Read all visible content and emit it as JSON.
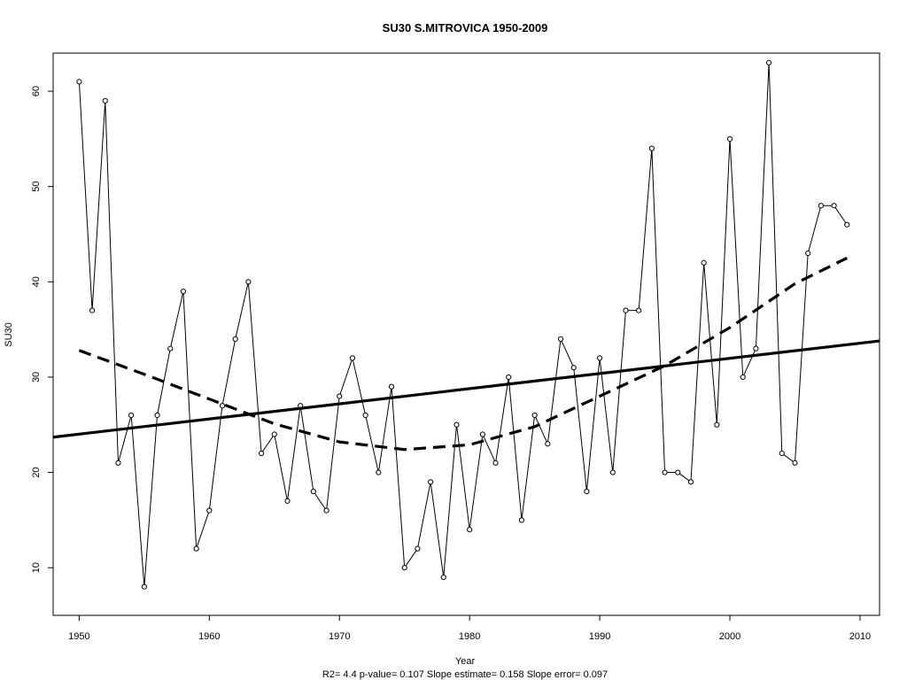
{
  "chart_data": {
    "type": "line",
    "title": "SU30   S.MITROVICA 1950-2009",
    "xlabel": "Year",
    "ylabel": "SU30",
    "stats_text": "R2= 4.4  p-value= 0.107  Slope estimate= 0.158  Slope error= 0.097",
    "xlim": [
      1948,
      2011.5
    ],
    "ylim": [
      5,
      64
    ],
    "xticks": [
      1950,
      1960,
      1970,
      1980,
      1990,
      2000,
      2010
    ],
    "yticks": [
      10,
      20,
      30,
      40,
      50,
      60
    ],
    "grid": false,
    "series": [
      {
        "style": "line-with-open-points",
        "x": [
          1950,
          1951,
          1952,
          1953,
          1954,
          1955,
          1956,
          1957,
          1958,
          1959,
          1960,
          1961,
          1962,
          1963,
          1964,
          1965,
          1966,
          1967,
          1968,
          1969,
          1970,
          1971,
          1972,
          1973,
          1974,
          1975,
          1976,
          1977,
          1978,
          1979,
          1980,
          1981,
          1982,
          1983,
          1984,
          1985,
          1986,
          1987,
          1988,
          1989,
          1990,
          1991,
          1992,
          1993,
          1994,
          1995,
          1996,
          1997,
          1998,
          1999,
          2000,
          2001,
          2002,
          2003,
          2004,
          2005,
          2006,
          2007,
          2008,
          2009
        ],
        "values": [
          61,
          37,
          59,
          21,
          26,
          8,
          26,
          33,
          39,
          12,
          16,
          27,
          34,
          40,
          22,
          24,
          17,
          27,
          18,
          16,
          28,
          32,
          26,
          20,
          29,
          10,
          12,
          19,
          9,
          25,
          14,
          24,
          21,
          30,
          15,
          26,
          23,
          34,
          31,
          18,
          32,
          20,
          37,
          37,
          54,
          20,
          20,
          19,
          42,
          25,
          55,
          30,
          33,
          63,
          22,
          21,
          43,
          48,
          48,
          46
        ]
      },
      {
        "style": "solid-thick",
        "x": [
          1948,
          2011.5
        ],
        "values": [
          23.7,
          33.8
        ]
      },
      {
        "style": "dashed-thick",
        "x": [
          1950,
          1955,
          1960,
          1965,
          1970,
          1975,
          1980,
          1985,
          1990,
          1995,
          2000,
          2005,
          2009
        ],
        "values": [
          32.8,
          30.3,
          27.7,
          25.1,
          23.2,
          22.4,
          22.9,
          24.8,
          28.0,
          31.2,
          35.2,
          39.8,
          42.5
        ]
      }
    ]
  }
}
